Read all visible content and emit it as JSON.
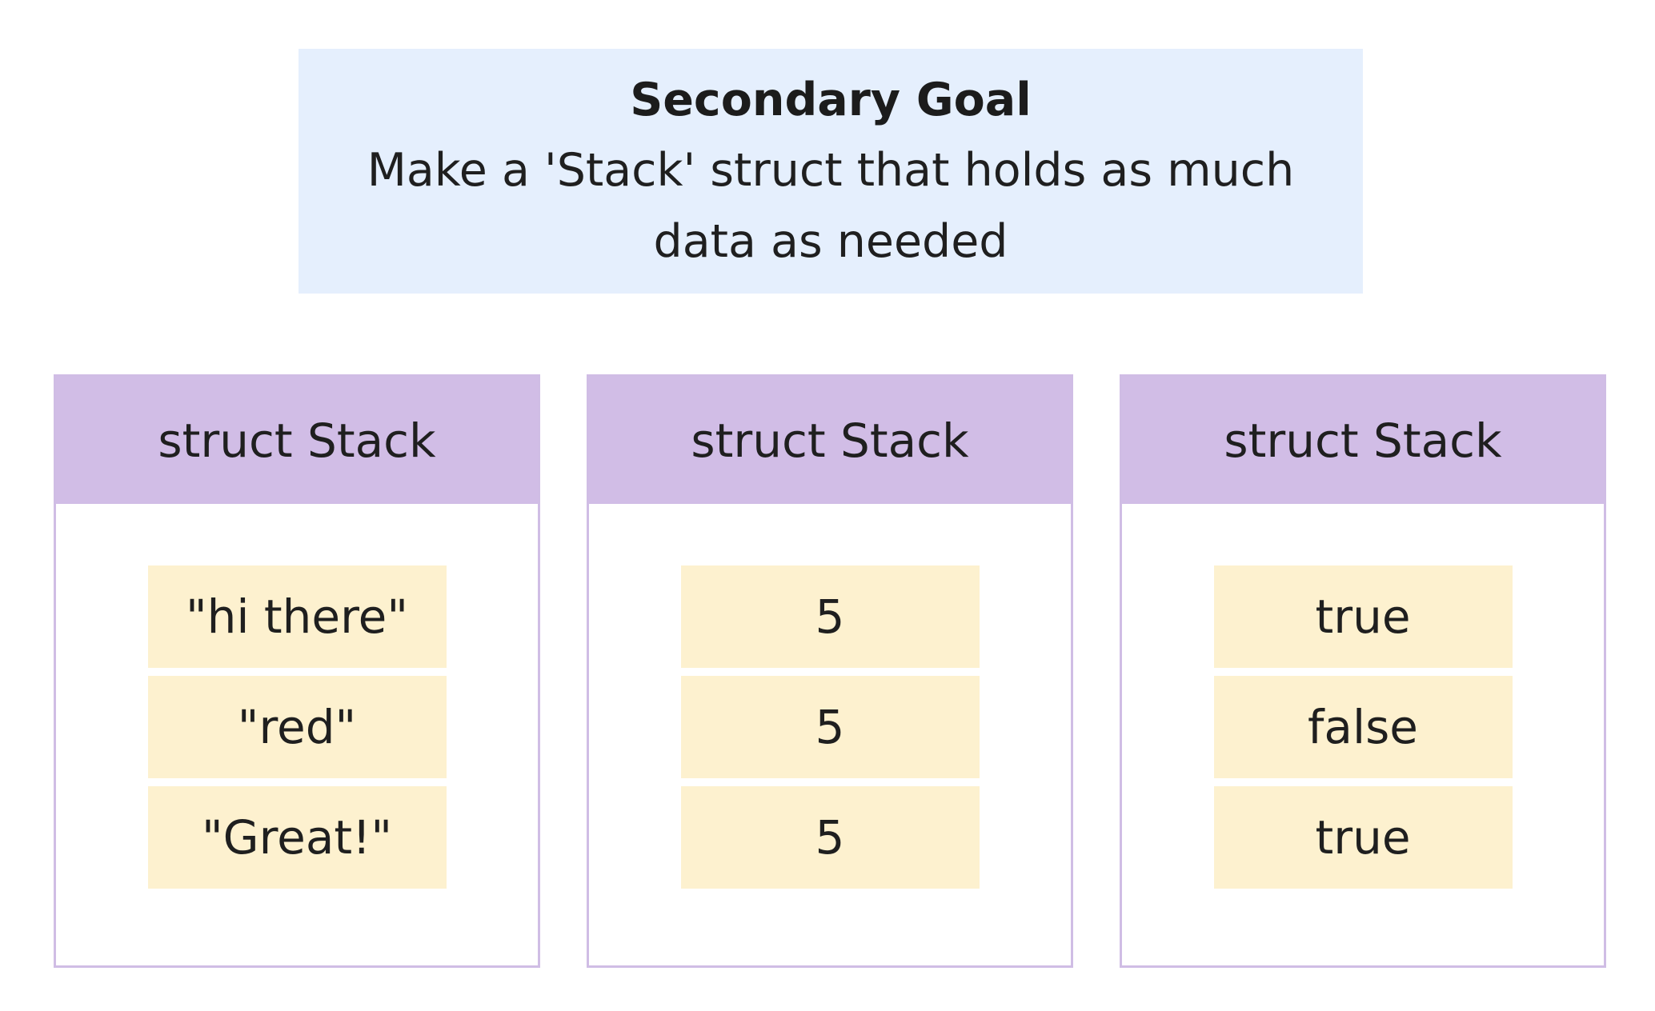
{
  "goal": {
    "title": "Secondary Goal",
    "description": "Make a 'Stack' struct that holds as much data as needed"
  },
  "stacks": [
    {
      "header": "struct Stack",
      "items": [
        "\"hi there\"",
        "\"red\"",
        "\"Great!\""
      ]
    },
    {
      "header": "struct Stack",
      "items": [
        "5",
        "5",
        "5"
      ]
    },
    {
      "header": "struct Stack",
      "items": [
        "true",
        "false",
        "true"
      ]
    }
  ],
  "colors": {
    "goal_background": "#e5effd",
    "stack_header": "#d1bde6",
    "stack_border": "#d0bde5",
    "item_background": "#fdf1cf"
  }
}
